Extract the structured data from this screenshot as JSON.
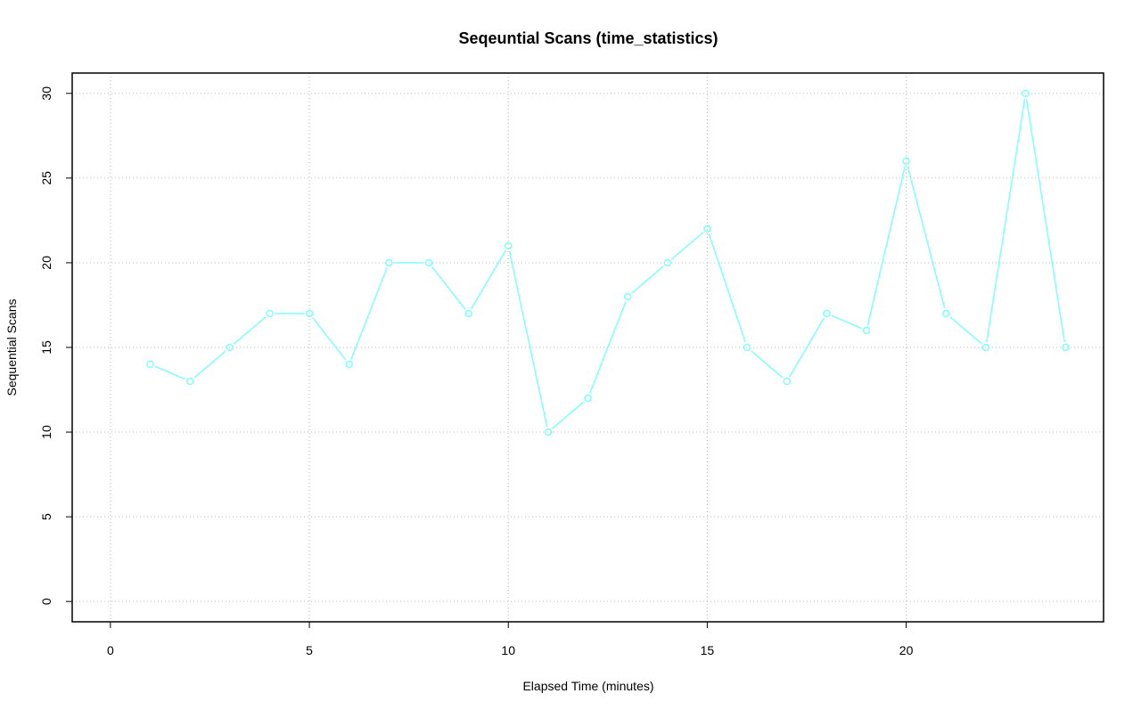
{
  "chart_data": {
    "type": "line",
    "title": "Seqeuntial Scans (time_statistics)",
    "x_label": "Elapsed Time (minutes)",
    "y_label": "Sequential Scans",
    "x": [
      1,
      2,
      3,
      4,
      5,
      6,
      7,
      8,
      9,
      10,
      11,
      12,
      13,
      14,
      15,
      16,
      17,
      18,
      19,
      20,
      21,
      22,
      23,
      24
    ],
    "series": [
      {
        "name": "Sequential Scans",
        "color": "#7fffff",
        "values": [
          14,
          13,
          15,
          17,
          17,
          14,
          20,
          20,
          17,
          21,
          10,
          12,
          18,
          20,
          22,
          15,
          13,
          17,
          16,
          26,
          17,
          15,
          30,
          15
        ]
      }
    ],
    "xlim": [
      -0.96,
      24.96
    ],
    "xticks": [
      0,
      5,
      10,
      15,
      20
    ],
    "ylim": [
      -1.2,
      31.2
    ],
    "yticks": [
      0,
      5,
      10,
      15,
      20,
      25,
      30
    ],
    "grid": true
  }
}
